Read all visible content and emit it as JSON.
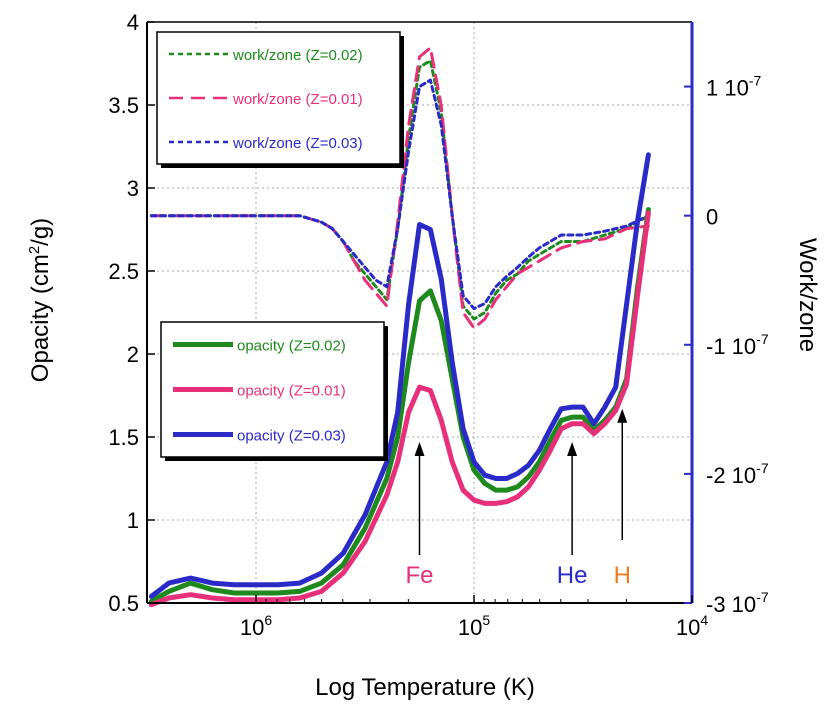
{
  "chart_data": {
    "type": "line",
    "xlabel": "Log Temperature (K)",
    "ylabel_left": {
      "pre": "Opacity (cm",
      "sup": "2",
      "post": "/g)"
    },
    "ylabel_right": "Work/zone",
    "x_axis": {
      "direction": "decreasing",
      "range_log10": [
        6.5,
        4.0
      ],
      "ticks": [
        {
          "value": 6,
          "base": "10",
          "exp": "6"
        },
        {
          "value": 5,
          "base": "10",
          "exp": "5"
        },
        {
          "value": 4,
          "base": "10",
          "exp": "4"
        }
      ]
    },
    "y_left": {
      "range": [
        0.5,
        4.0
      ],
      "ticks": [
        {
          "value": 0.5,
          "label": "0.5"
        },
        {
          "value": 1.0,
          "label": "1"
        },
        {
          "value": 1.5,
          "label": "1.5"
        },
        {
          "value": 2.0,
          "label": "2"
        },
        {
          "value": 2.5,
          "label": "2.5"
        },
        {
          "value": 3.0,
          "label": "3"
        },
        {
          "value": 3.5,
          "label": "3.5"
        },
        {
          "value": 4.0,
          "label": "4"
        }
      ]
    },
    "y_right": {
      "range_e7": [
        -3.0,
        1.5
      ],
      "ticks": [
        {
          "value": 1,
          "mant": "1 10",
          "exp": "-7"
        },
        {
          "value": 0,
          "mant": "0",
          "exp": ""
        },
        {
          "value": -1,
          "mant": "-1 10",
          "exp": "-7"
        },
        {
          "value": -2,
          "mant": "-2 10",
          "exp": "-7"
        },
        {
          "value": -3,
          "mant": "-3 10",
          "exp": "-7"
        }
      ]
    },
    "series": [
      {
        "name": "opacity (Z=0.02)",
        "axis": "left",
        "color": "#1e8a1e",
        "style": "solid",
        "x": [
          6.48,
          6.4,
          6.3,
          6.2,
          6.1,
          6.0,
          5.9,
          5.8,
          5.7,
          5.6,
          5.5,
          5.4,
          5.35,
          5.3,
          5.25,
          5.2,
          5.15,
          5.1,
          5.05,
          5.0,
          4.95,
          4.9,
          4.85,
          4.8,
          4.75,
          4.7,
          4.65,
          4.6,
          4.55,
          4.5,
          4.45,
          4.4,
          4.35,
          4.3,
          4.25,
          4.2
        ],
        "y": [
          0.51,
          0.57,
          0.62,
          0.58,
          0.56,
          0.56,
          0.56,
          0.57,
          0.62,
          0.73,
          0.95,
          1.25,
          1.5,
          1.95,
          2.32,
          2.38,
          2.2,
          1.85,
          1.5,
          1.3,
          1.22,
          1.18,
          1.18,
          1.2,
          1.26,
          1.35,
          1.48,
          1.6,
          1.62,
          1.62,
          1.54,
          1.6,
          1.68,
          1.85,
          2.4,
          2.87
        ]
      },
      {
        "name": "opacity (Z=0.01)",
        "axis": "left",
        "color": "#e8307a",
        "style": "solid",
        "x": [
          6.48,
          6.4,
          6.3,
          6.2,
          6.1,
          6.0,
          5.9,
          5.8,
          5.7,
          5.6,
          5.5,
          5.4,
          5.35,
          5.3,
          5.25,
          5.2,
          5.15,
          5.1,
          5.05,
          5.0,
          4.95,
          4.9,
          4.85,
          4.8,
          4.75,
          4.7,
          4.65,
          4.6,
          4.55,
          4.5,
          4.45,
          4.4,
          4.35,
          4.3,
          4.25,
          4.2
        ],
        "y": [
          0.49,
          0.53,
          0.55,
          0.53,
          0.52,
          0.52,
          0.52,
          0.53,
          0.57,
          0.68,
          0.87,
          1.15,
          1.35,
          1.65,
          1.8,
          1.78,
          1.6,
          1.35,
          1.18,
          1.12,
          1.1,
          1.1,
          1.11,
          1.14,
          1.2,
          1.3,
          1.42,
          1.55,
          1.58,
          1.58,
          1.52,
          1.58,
          1.66,
          1.82,
          2.35,
          2.85
        ]
      },
      {
        "name": "opacity (Z=0.03)",
        "axis": "left",
        "color": "#2a2ac8",
        "style": "solid",
        "x": [
          6.48,
          6.4,
          6.3,
          6.2,
          6.1,
          6.0,
          5.9,
          5.8,
          5.7,
          5.6,
          5.5,
          5.4,
          5.35,
          5.3,
          5.25,
          5.2,
          5.15,
          5.1,
          5.05,
          5.0,
          4.95,
          4.9,
          4.85,
          4.8,
          4.75,
          4.7,
          4.65,
          4.6,
          4.55,
          4.5,
          4.45,
          4.4,
          4.35,
          4.3,
          4.25,
          4.2
        ],
        "y": [
          0.54,
          0.62,
          0.65,
          0.62,
          0.61,
          0.61,
          0.61,
          0.62,
          0.68,
          0.8,
          1.03,
          1.35,
          1.65,
          2.3,
          2.78,
          2.75,
          2.45,
          1.95,
          1.55,
          1.35,
          1.27,
          1.25,
          1.25,
          1.28,
          1.33,
          1.42,
          1.55,
          1.67,
          1.68,
          1.68,
          1.58,
          1.68,
          1.8,
          2.3,
          2.8,
          3.2
        ]
      },
      {
        "name": "work/zone (Z=0.02)",
        "axis": "right",
        "color": "#1e8a1e",
        "style": "dotted",
        "x": [
          6.48,
          6.2,
          6.0,
          5.8,
          5.7,
          5.65,
          5.6,
          5.55,
          5.5,
          5.45,
          5.4,
          5.35,
          5.3,
          5.25,
          5.2,
          5.15,
          5.1,
          5.05,
          5.0,
          4.95,
          4.9,
          4.85,
          4.8,
          4.75,
          4.7,
          4.6,
          4.5,
          4.4,
          4.3,
          4.2
        ],
        "y": [
          0,
          0,
          0,
          0,
          -0.05,
          -0.1,
          -0.2,
          -0.35,
          -0.45,
          -0.55,
          -0.65,
          -0.1,
          0.6,
          1.15,
          1.2,
          0.8,
          0,
          -0.7,
          -0.8,
          -0.75,
          -0.6,
          -0.5,
          -0.45,
          -0.35,
          -0.3,
          -0.2,
          -0.2,
          -0.15,
          -0.1,
          0
        ]
      },
      {
        "name": "work/zone (Z=0.01)",
        "axis": "right",
        "color": "#e8307a",
        "style": "dashed",
        "x": [
          6.48,
          6.2,
          6.0,
          5.8,
          5.7,
          5.65,
          5.6,
          5.55,
          5.5,
          5.45,
          5.4,
          5.35,
          5.3,
          5.25,
          5.2,
          5.15,
          5.1,
          5.05,
          5.0,
          4.95,
          4.9,
          4.85,
          4.8,
          4.75,
          4.7,
          4.6,
          4.5,
          4.4,
          4.3,
          4.2
        ],
        "y": [
          0,
          0,
          0,
          0,
          -0.05,
          -0.1,
          -0.2,
          -0.35,
          -0.5,
          -0.6,
          -0.7,
          -0.05,
          0.7,
          1.23,
          1.3,
          0.85,
          0,
          -0.75,
          -0.87,
          -0.8,
          -0.65,
          -0.55,
          -0.45,
          -0.4,
          -0.35,
          -0.25,
          -0.2,
          -0.18,
          -0.1,
          -0.08
        ]
      },
      {
        "name": "work/zone (Z=0.03)",
        "axis": "right",
        "color": "#2a2ac8",
        "style": "dotted",
        "x": [
          6.48,
          6.2,
          6.0,
          5.8,
          5.7,
          5.65,
          5.6,
          5.55,
          5.5,
          5.45,
          5.4,
          5.35,
          5.3,
          5.25,
          5.2,
          5.15,
          5.1,
          5.05,
          5.0,
          4.95,
          4.9,
          4.85,
          4.8,
          4.75,
          4.7,
          4.6,
          4.5,
          4.4,
          4.3,
          4.2
        ],
        "y": [
          0,
          0,
          0,
          0,
          -0.05,
          -0.1,
          -0.2,
          -0.3,
          -0.4,
          -0.5,
          -0.55,
          -0.1,
          0.5,
          1.0,
          1.05,
          0.7,
          0,
          -0.62,
          -0.72,
          -0.68,
          -0.55,
          -0.47,
          -0.4,
          -0.32,
          -0.25,
          -0.15,
          -0.15,
          -0.12,
          -0.08,
          0
        ]
      }
    ],
    "legends": [
      {
        "placement": "top-left",
        "entries": [
          {
            "label": "work/zone (Z=0.02)",
            "color": "#1e8a1e",
            "style": "dotted"
          },
          {
            "label": "work/zone (Z=0.01)",
            "color": "#e8307a",
            "style": "dashed"
          },
          {
            "label": "work/zone (Z=0.03)",
            "color": "#2a2ac8",
            "style": "dotted"
          }
        ]
      },
      {
        "placement": "middle-left",
        "entries": [
          {
            "label": "opacity (Z=0.02)",
            "color": "#1e8a1e",
            "style": "solid"
          },
          {
            "label": "opacity (Z=0.01)",
            "color": "#e8307a",
            "style": "solid"
          },
          {
            "label": "opacity (Z=0.03)",
            "color": "#2a2ac8",
            "style": "solid"
          }
        ]
      }
    ],
    "annotations": [
      {
        "text": "Fe",
        "x": 5.25,
        "arrow_to_y": 1.5,
        "color": "#e8307a"
      },
      {
        "text": "He",
        "x": 4.55,
        "arrow_to_y": 1.5,
        "color": "#2a2ac8"
      },
      {
        "text": "H",
        "x": 4.32,
        "arrow_to_y": 1.65,
        "color": "#f07a1e"
      }
    ],
    "colors": {
      "axis_left": "#000000",
      "axis_right": "#2a2ac8",
      "grid": "#aaaaaa"
    },
    "grid": true
  }
}
